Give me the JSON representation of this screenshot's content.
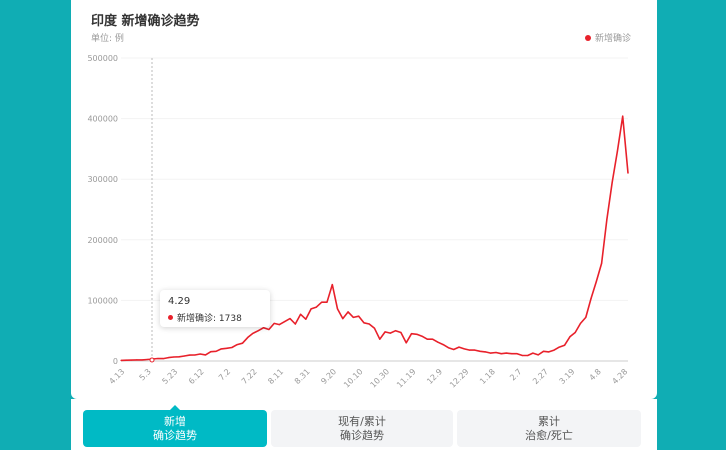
{
  "header": {
    "title": "印度 新增确诊趋势",
    "unit": "单位: 例",
    "legend": "新增确诊"
  },
  "colors": {
    "line": "#e8212b",
    "accent": "#00bac5",
    "background": "#10adb4"
  },
  "tooltip": {
    "date": "4.29",
    "label": "新增确诊: 1738"
  },
  "tabs": [
    {
      "line1": "新增",
      "line2": "确诊趋势",
      "active": true
    },
    {
      "line1": "现有/累计",
      "line2": "确诊趋势",
      "active": false
    },
    {
      "line1": "累计",
      "line2": "治愈/死亡",
      "active": false
    }
  ],
  "chart_data": {
    "type": "line",
    "series": [
      {
        "name": "新增确诊",
        "values": [
          1000,
          1300,
          1500,
          1800,
          1738,
          2500,
          3300,
          4200,
          4000,
          5600,
          6600,
          7000,
          8300,
          9800,
          9900,
          11500,
          10000,
          15400,
          16000,
          19900,
          21000,
          22200,
          27100,
          29400,
          38900,
          45700,
          50000,
          55000,
          52000,
          62000,
          60000,
          65000,
          70000,
          61000,
          77000,
          69000,
          86000,
          89000,
          97000,
          97000,
          126000,
          86000,
          70000,
          81000,
          72000,
          74000,
          63000,
          61000,
          54000,
          36000,
          48000,
          46000,
          50000,
          47000,
          30000,
          45000,
          44000,
          41000,
          36000,
          36000,
          31000,
          27000,
          22000,
          19000,
          23000,
          20000,
          18000,
          18000,
          16000,
          15000,
          13000,
          14000,
          12000,
          13000,
          12000,
          12000,
          9000,
          9000,
          13000,
          10000,
          16000,
          15000,
          18000,
          23000,
          26000,
          40000,
          47000,
          62000,
          72000,
          103000,
          131000,
          161000,
          234000,
          295000,
          346000,
          404000,
          310000
        ]
      }
    ],
    "x_ticks": [
      "4.13",
      "5.3",
      "5.23",
      "6.12",
      "7.2",
      "7.22",
      "8.11",
      "8.31",
      "9.20",
      "10.10",
      "10.30",
      "11.19",
      "12.9",
      "12.29",
      "1.18",
      "2.7",
      "2.27",
      "3.19",
      "4.8",
      "4.28"
    ],
    "y_ticks": [
      "0",
      "100000",
      "200000",
      "300000",
      "400000",
      "500000"
    ],
    "ylim": [
      0,
      500000
    ],
    "grid": true,
    "legend_position": "top-right"
  }
}
